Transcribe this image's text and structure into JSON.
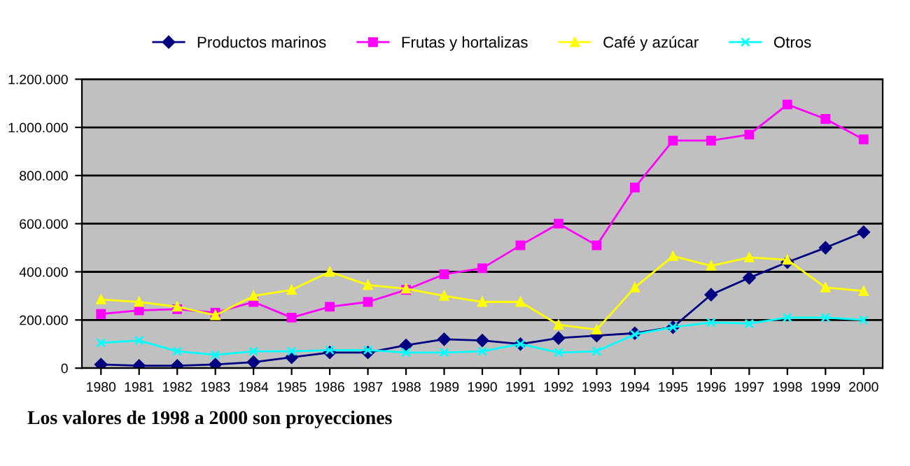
{
  "chart_data": {
    "type": "line",
    "categories": [
      "1980",
      "1981",
      "1982",
      "1983",
      "1984",
      "1985",
      "1986",
      "1987",
      "1988",
      "1989",
      "1990",
      "1991",
      "1992",
      "1993",
      "1994",
      "1995",
      "1996",
      "1997",
      "1998",
      "1999",
      "2000"
    ],
    "series": [
      {
        "name": "Productos marinos",
        "color": "#000080",
        "marker": "diamond",
        "values": [
          15000,
          10000,
          10000,
          15000,
          25000,
          45000,
          65000,
          65000,
          95000,
          120000,
          115000,
          100000,
          125000,
          135000,
          145000,
          170000,
          305000,
          375000,
          440000,
          500000,
          565000
        ]
      },
      {
        "name": "Frutas y hortalizas",
        "color": "#ff00ff",
        "marker": "square",
        "values": [
          225000,
          240000,
          245000,
          230000,
          275000,
          210000,
          255000,
          275000,
          325000,
          390000,
          415000,
          510000,
          600000,
          510000,
          750000,
          945000,
          945000,
          970000,
          1095000,
          1035000,
          950000
        ]
      },
      {
        "name": "Café y azúcar",
        "color": "#ffff00",
        "marker": "triangle",
        "values": [
          285000,
          275000,
          255000,
          220000,
          300000,
          325000,
          400000,
          345000,
          330000,
          300000,
          275000,
          275000,
          180000,
          160000,
          335000,
          465000,
          425000,
          460000,
          450000,
          335000,
          320000
        ]
      },
      {
        "name": "Otros",
        "color": "#00ffff",
        "marker": "cross",
        "values": [
          105000,
          115000,
          70000,
          55000,
          70000,
          70000,
          75000,
          75000,
          65000,
          65000,
          70000,
          100000,
          65000,
          70000,
          140000,
          170000,
          190000,
          185000,
          210000,
          210000,
          200000
        ]
      }
    ],
    "ylim": [
      0,
      1200000
    ],
    "yticks": [
      0,
      {
        "value": 200000,
        "label": "200.000"
      },
      {
        "value": 400000,
        "label": "400.000"
      },
      {
        "value": 600000,
        "label": "600.000"
      },
      {
        "value": 800000,
        "label": "800.000"
      },
      {
        "value": 1000000,
        "label": "1.000.000"
      },
      {
        "value": 1200000,
        "label": "1.200.000"
      }
    ],
    "grid": "y",
    "legend": "top",
    "line_style": "solid",
    "annotations": [
      "Los valores de 1998 a 2000 son proyecciones"
    ]
  }
}
